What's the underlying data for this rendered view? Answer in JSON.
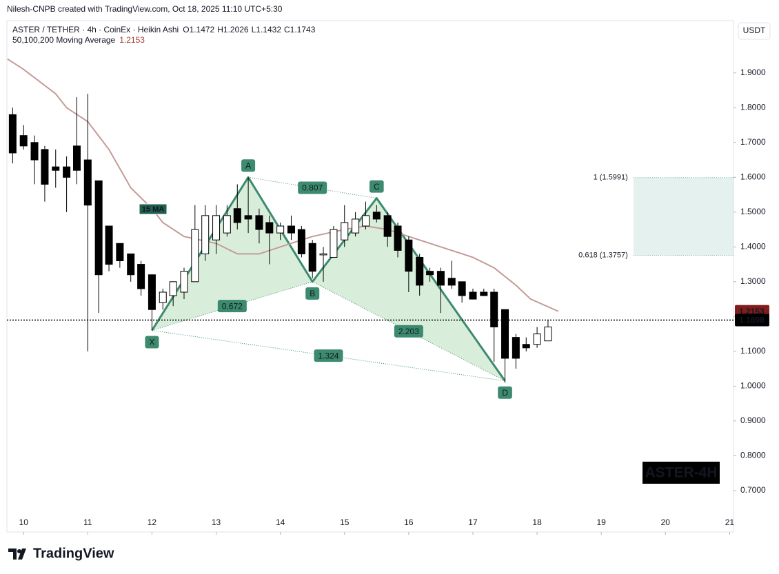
{
  "header": {
    "credit": "Nilesh-CNPB created with TradingView.com, Oct 18, 2025 11:10 UTC+5:30",
    "logo": "TradingView"
  },
  "chart_data": {
    "type": "candlestick",
    "title": "ASTER / TETHER · 4h · CoinEx · Heikin Ashi",
    "ohlc_labels": [
      "O1.1472",
      "H1.2026",
      "L1.1432",
      "C1.1743"
    ],
    "currency": "USDT",
    "watermark": "ASTER-4H",
    "up_color": "#ffffff",
    "down_color": "#000000",
    "xlim": [
      9.74,
      21.06
    ],
    "ylim": [
      0.581,
      2.05
    ],
    "xticks": [
      10,
      11,
      12,
      13,
      14,
      15,
      16,
      17,
      18,
      19,
      20,
      21
    ],
    "yticks": [
      {
        "value": 0.7,
        "label": "0.7000"
      },
      {
        "value": 0.8,
        "label": "0.8000"
      },
      {
        "value": 0.9,
        "label": "0.9000"
      },
      {
        "value": 1.0,
        "label": "1.0000"
      },
      {
        "value": 1.1,
        "label": "1.1000"
      },
      {
        "value": 1.2,
        "label": "1.2000"
      },
      {
        "value": 1.3,
        "label": "1.3000"
      },
      {
        "value": 1.4,
        "label": "1.4000"
      },
      {
        "value": 1.5,
        "label": "1.5000"
      },
      {
        "value": 1.6,
        "label": "1.6000"
      },
      {
        "value": 1.7,
        "label": "1.7000"
      },
      {
        "value": 1.8,
        "label": "1.8000"
      },
      {
        "value": 1.9,
        "label": "1.9000"
      }
    ],
    "grid": false,
    "x": [
      9.83,
      10,
      10.17,
      10.33,
      10.5,
      10.67,
      10.83,
      11,
      11.17,
      11.33,
      11.5,
      11.67,
      11.83,
      12,
      12.17,
      12.33,
      12.5,
      12.67,
      12.83,
      13,
      13.17,
      13.33,
      13.5,
      13.67,
      13.83,
      14,
      14.17,
      14.33,
      14.5,
      14.67,
      14.83,
      15,
      15.17,
      15.33,
      15.5,
      15.67,
      15.83,
      16,
      16.17,
      16.33,
      16.5,
      16.67,
      16.83,
      17,
      17.17,
      17.33,
      17.5,
      17.67,
      17.83,
      18,
      18.17
    ],
    "open": [
      1.78,
      1.72,
      1.7,
      1.68,
      1.63,
      1.63,
      1.69,
      1.65,
      1.59,
      1.46,
      1.41,
      1.38,
      1.35,
      1.32,
      1.24,
      1.26,
      1.27,
      1.3,
      1.38,
      1.42,
      1.44,
      1.51,
      1.49,
      1.49,
      1.47,
      1.44,
      1.46,
      1.45,
      1.41,
      1.38,
      1.37,
      1.42,
      1.44,
      1.46,
      1.5,
      1.49,
      1.46,
      1.42,
      1.37,
      1.33,
      1.33,
      1.31,
      1.3,
      1.27,
      1.27,
      1.27,
      1.22,
      1.14,
      1.12,
      1.12,
      1.13
    ],
    "high": [
      1.8,
      1.75,
      1.72,
      1.69,
      1.68,
      1.66,
      1.83,
      1.84,
      1.59,
      1.46,
      1.41,
      1.38,
      1.36,
      1.32,
      1.28,
      1.3,
      1.34,
      1.52,
      1.52,
      1.52,
      1.52,
      1.58,
      1.6,
      1.51,
      1.49,
      1.47,
      1.49,
      1.46,
      1.42,
      1.4,
      1.46,
      1.52,
      1.5,
      1.53,
      1.52,
      1.5,
      1.47,
      1.43,
      1.38,
      1.34,
      1.34,
      1.36,
      1.3,
      1.28,
      1.28,
      1.28,
      1.22,
      1.15,
      1.14,
      1.17,
      1.19
    ],
    "low": [
      1.64,
      1.68,
      1.58,
      1.53,
      1.57,
      1.5,
      1.58,
      1.1,
      1.21,
      1.33,
      1.34,
      1.3,
      1.26,
      1.16,
      1.22,
      1.23,
      1.25,
      1.3,
      1.36,
      1.38,
      1.43,
      1.45,
      1.44,
      1.41,
      1.35,
      1.42,
      1.42,
      1.37,
      1.31,
      1.3,
      1.37,
      1.4,
      1.43,
      1.45,
      1.47,
      1.4,
      1.37,
      1.27,
      1.26,
      1.3,
      1.21,
      1.28,
      1.24,
      1.25,
      1.26,
      1.07,
      1.01,
      1.05,
      1.1,
      1.11,
      1.13
    ],
    "close": [
      1.67,
      1.69,
      1.65,
      1.58,
      1.62,
      1.6,
      1.62,
      1.52,
      1.32,
      1.35,
      1.36,
      1.32,
      1.28,
      1.22,
      1.27,
      1.3,
      1.33,
      1.45,
      1.49,
      1.49,
      1.49,
      1.47,
      1.48,
      1.45,
      1.44,
      1.46,
      1.44,
      1.38,
      1.33,
      1.38,
      1.45,
      1.47,
      1.48,
      1.49,
      1.48,
      1.43,
      1.39,
      1.33,
      1.29,
      1.32,
      1.29,
      1.29,
      1.26,
      1.25,
      1.26,
      1.17,
      1.08,
      1.08,
      1.11,
      1.15,
      1.17
    ],
    "last_price": 1.1898,
    "indicator": {
      "name": "50,100,200 Moving Average",
      "label": "15 MA",
      "value": 1.2153,
      "color": "#c49a96",
      "x": [
        9.75,
        10,
        10.5,
        10.67,
        11,
        11.33,
        11.67,
        12,
        12.17,
        12.5,
        13,
        13.33,
        13.67,
        14,
        14.5,
        15,
        15.33,
        15.67,
        16,
        16.5,
        17,
        17.33,
        17.67,
        17.9,
        18.33
      ],
      "values": [
        1.94,
        1.91,
        1.84,
        1.8,
        1.76,
        1.68,
        1.57,
        1.51,
        1.47,
        1.43,
        1.41,
        1.38,
        1.38,
        1.4,
        1.43,
        1.45,
        1.46,
        1.45,
        1.43,
        1.4,
        1.37,
        1.34,
        1.29,
        1.25,
        1.215
      ]
    },
    "pattern": {
      "color": "#3d8b6e",
      "points": [
        {
          "label": "X",
          "x": 12,
          "y": 1.16
        },
        {
          "label": "A",
          "x": 13.5,
          "y": 1.6
        },
        {
          "label": "B",
          "x": 14.5,
          "y": 1.3
        },
        {
          "label": "C",
          "x": 15.5,
          "y": 1.54
        },
        {
          "label": "D",
          "x": 17.5,
          "y": 1.015
        }
      ],
      "ratios": [
        0.807,
        0.672,
        2.203,
        1.324
      ]
    },
    "targets": [
      {
        "label": "1 (1.5991)",
        "value": 1.5991
      },
      {
        "label": "0.618 (1.3757)",
        "value": 1.3757
      }
    ],
    "target_x": [
      19.5,
      21.06
    ]
  }
}
